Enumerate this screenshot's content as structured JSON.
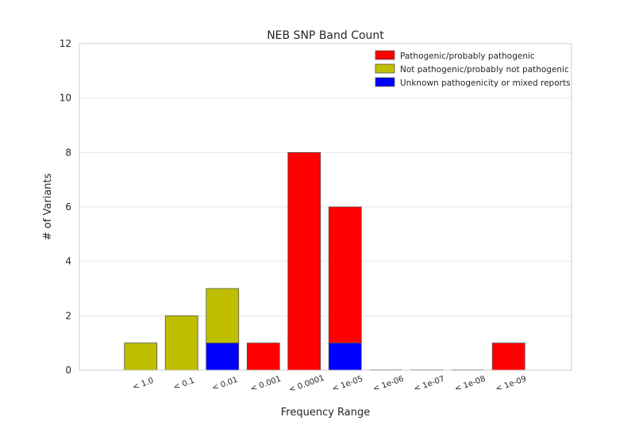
{
  "chart_data": {
    "type": "bar",
    "stacked": true,
    "title": "NEB SNP Band Count",
    "xlabel": "Frequency Range",
    "ylabel": "# of Variants",
    "ylim": [
      0,
      12
    ],
    "yticks": [
      0,
      2,
      4,
      6,
      8,
      10,
      12
    ],
    "grid": true,
    "legend_position": "top-right",
    "categories": [
      "< 1.0",
      "< 0.1",
      "< 0.01",
      "< 0.001",
      "< 0.0001",
      "< 1e-05",
      "< 1e-06",
      "< 1e-07",
      "< 1e-08",
      "< 1e-09"
    ],
    "series": [
      {
        "name": "Unknown pathogenicity or mixed reports",
        "color": "#0000ff",
        "values": [
          0,
          0,
          1,
          0,
          0,
          1,
          0,
          0,
          0,
          0
        ]
      },
      {
        "name": "Not pathogenic/probably not pathogenic",
        "color": "#bfbf00",
        "values": [
          1,
          2,
          2,
          0,
          0,
          0,
          0,
          0,
          0,
          0
        ]
      },
      {
        "name": "Pathogenic/probably pathogenic",
        "color": "#ff0000",
        "values": [
          0,
          0,
          0,
          1,
          8,
          5,
          0,
          0,
          0,
          1
        ]
      }
    ],
    "legend_order": [
      "Pathogenic/probably pathogenic",
      "Not pathogenic/probably not pathogenic",
      "Unknown pathogenicity or mixed reports"
    ]
  }
}
